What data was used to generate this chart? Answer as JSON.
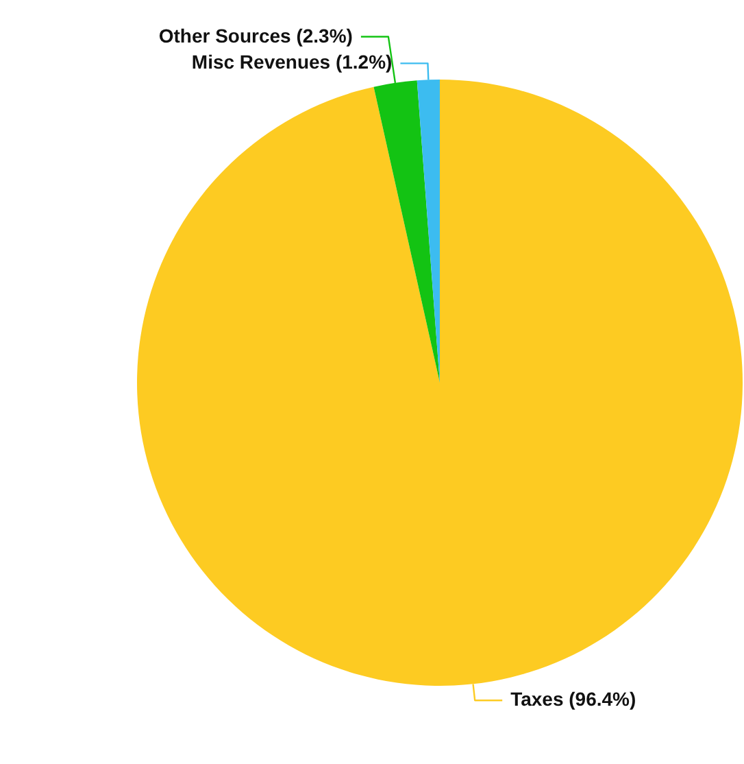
{
  "chart_data": {
    "type": "pie",
    "categories": [
      "Taxes (96.4%)",
      "Other Sources (2.3%)",
      "Misc Revenues (1.2%)"
    ],
    "values": [
      96.4,
      2.3,
      1.2
    ],
    "colors": [
      "#fdcb22",
      "#13c313",
      "#3cbcf0"
    ]
  }
}
